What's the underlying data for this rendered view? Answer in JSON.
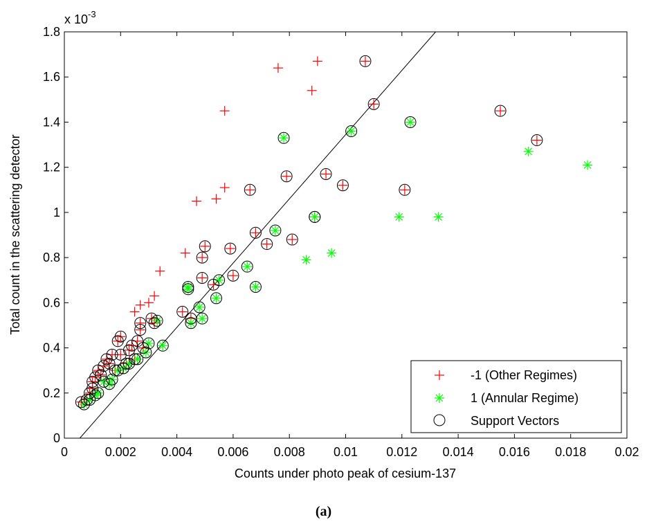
{
  "chart_data": {
    "type": "scatter",
    "title": "",
    "xlabel": "Counts under photo peak of cesium-137",
    "ylabel": "Total count in the scattering detector",
    "y_exponent_label": "x 10",
    "y_exponent_power": "-3",
    "xlim": [
      0,
      0.02
    ],
    "ylim": [
      0,
      1.8
    ],
    "x_ticks": [
      "0",
      "0.002",
      "0.004",
      "0.006",
      "0.008",
      "0.01",
      "0.012",
      "0.014",
      "0.016",
      "0.018",
      "0.02"
    ],
    "y_ticks": [
      "0",
      "0.2",
      "0.4",
      "0.6",
      "0.8",
      "1",
      "1.2",
      "1.4",
      "1.6",
      "1.8"
    ],
    "grid": false,
    "legend_position": "bottom-right",
    "series": [
      {
        "name": "-1 (Other Regimes)",
        "marker": "plus",
        "color": "#ff0000",
        "x": [
          0.0006,
          0.0008,
          0.0009,
          0.001,
          0.001,
          0.0011,
          0.0012,
          0.0013,
          0.0014,
          0.0015,
          0.0016,
          0.0017,
          0.0018,
          0.0019,
          0.002,
          0.002,
          0.0021,
          0.0022,
          0.0023,
          0.0024,
          0.0025,
          0.0026,
          0.0027,
          0.0027,
          0.0028,
          0.003,
          0.0031,
          0.0032,
          0.0032,
          0.0025,
          0.0027,
          0.0034,
          0.0042,
          0.0043,
          0.0045,
          0.0047,
          0.0049,
          0.0049,
          0.005,
          0.0053,
          0.0054,
          0.0057,
          0.0057,
          0.0059,
          0.006,
          0.0066,
          0.0068,
          0.0072,
          0.0076,
          0.0079,
          0.0081,
          0.0088,
          0.0089,
          0.009,
          0.0093,
          0.0099,
          0.0107,
          0.011,
          0.0121,
          0.0155,
          0.0168
        ],
        "y": [
          0.16,
          0.17,
          0.2,
          0.22,
          0.25,
          0.27,
          0.3,
          0.28,
          0.32,
          0.35,
          0.33,
          0.37,
          0.3,
          0.43,
          0.37,
          0.45,
          0.31,
          0.33,
          0.39,
          0.41,
          0.35,
          0.43,
          0.48,
          0.51,
          0.4,
          0.6,
          0.53,
          0.51,
          0.63,
          0.56,
          0.59,
          0.74,
          0.56,
          0.82,
          0.53,
          1.05,
          0.8,
          0.71,
          0.85,
          0.68,
          1.06,
          1.11,
          1.45,
          0.84,
          0.72,
          1.1,
          0.91,
          0.86,
          1.64,
          1.16,
          0.88,
          1.54,
          0.98,
          1.67,
          1.17,
          1.12,
          1.67,
          1.48,
          1.1,
          1.45,
          1.32
        ]
      },
      {
        "name": "1 (Annular Regime)",
        "marker": "asterisk",
        "color": "#00ff00",
        "x": [
          0.0007,
          0.0009,
          0.0011,
          0.0012,
          0.0014,
          0.0016,
          0.0017,
          0.0019,
          0.0021,
          0.0023,
          0.0026,
          0.0029,
          0.003,
          0.0033,
          0.0035,
          0.0044,
          0.0044,
          0.0045,
          0.0048,
          0.0049,
          0.0054,
          0.0055,
          0.0065,
          0.0068,
          0.0075,
          0.0078,
          0.0086,
          0.0089,
          0.0095,
          0.0102,
          0.0119,
          0.0123,
          0.0133,
          0.0165,
          0.0186
        ],
        "y": [
          0.15,
          0.17,
          0.19,
          0.2,
          0.25,
          0.24,
          0.26,
          0.3,
          0.31,
          0.33,
          0.35,
          0.38,
          0.42,
          0.52,
          0.41,
          0.67,
          0.66,
          0.51,
          0.58,
          0.53,
          0.62,
          0.7,
          0.76,
          0.67,
          0.92,
          1.33,
          0.79,
          0.98,
          0.82,
          1.36,
          0.98,
          1.4,
          0.98,
          1.27,
          1.21
        ]
      }
    ],
    "support_vectors": {
      "name": "Support Vectors",
      "marker": "circle",
      "color": "#000000"
    },
    "decision_boundary": {
      "x": [
        0.00055,
        0.0132
      ],
      "y": [
        0,
        1.8
      ]
    }
  },
  "caption": "(a)"
}
